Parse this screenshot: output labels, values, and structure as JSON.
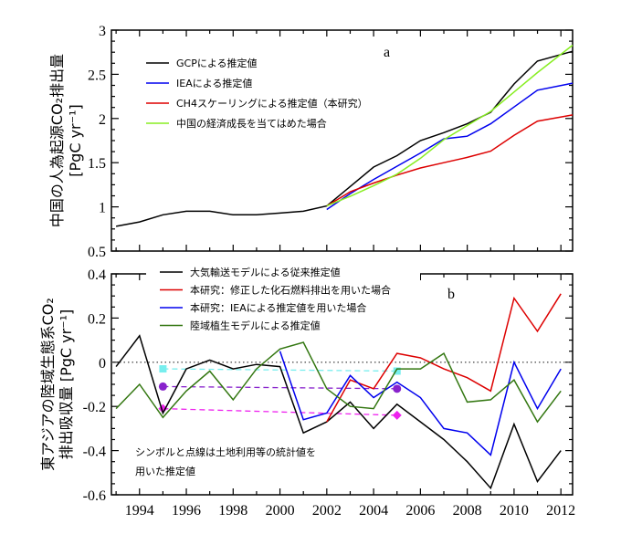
{
  "chart_data": [
    {
      "type": "line",
      "panel_label": "a",
      "ylabel_line1": "中国の人為起源CO₂排出量",
      "ylabel_line2": "[PgC yr⁻¹]",
      "xlabel": "",
      "xlim": [
        1992.8,
        2012.5
      ],
      "ylim": [
        0.5,
        3
      ],
      "yticks": [
        0.5,
        1,
        1.5,
        2,
        2.5,
        3
      ],
      "ytick_labels": [
        "0.5",
        "1",
        "1.5",
        "2",
        "2.5",
        "3"
      ],
      "xticks": [
        1994,
        1996,
        1998,
        2000,
        2002,
        2004,
        2006,
        2008,
        2010,
        2012
      ],
      "legend_position": "top-left",
      "series": [
        {
          "name": "GCPによる推定値",
          "color": "#000000",
          "x": [
            1993,
            1994,
            1995,
            1996,
            1997,
            1998,
            1999,
            2000,
            2001,
            2002,
            2003,
            2004,
            2005,
            2006,
            2007,
            2008,
            2009,
            2010,
            2011,
            2012.5
          ],
          "values": [
            0.78,
            0.83,
            0.91,
            0.95,
            0.95,
            0.91,
            0.91,
            0.93,
            0.95,
            1.01,
            1.23,
            1.45,
            1.58,
            1.75,
            1.84,
            1.94,
            2.07,
            2.39,
            2.65,
            2.76
          ]
        },
        {
          "name": "IEAによる推定値",
          "color": "#0000ee",
          "x": [
            2002,
            2003,
            2004,
            2005,
            2006,
            2007,
            2008,
            2009,
            2010,
            2011,
            2012.5
          ],
          "values": [
            0.97,
            1.15,
            1.31,
            1.46,
            1.61,
            1.77,
            1.8,
            1.94,
            2.13,
            2.32,
            2.4
          ]
        },
        {
          "name": "CH4スケーリングによる推定値（本研究）",
          "color": "#dd0000",
          "x": [
            2002,
            2003,
            2004,
            2005,
            2006,
            2007,
            2008,
            2009,
            2010,
            2011,
            2012.5
          ],
          "values": [
            1.01,
            1.17,
            1.27,
            1.36,
            1.44,
            1.5,
            1.56,
            1.63,
            1.81,
            1.97,
            2.04
          ]
        },
        {
          "name": "中国の経済成長を当てはめた場合",
          "color": "#88ee22",
          "x": [
            2002,
            2003,
            2004,
            2005,
            2006,
            2007,
            2008,
            2009,
            2010,
            2011,
            2012.5
          ],
          "values": [
            1.01,
            1.12,
            1.24,
            1.37,
            1.55,
            1.76,
            1.92,
            2.08,
            2.3,
            2.52,
            2.83
          ]
        }
      ]
    },
    {
      "type": "line",
      "panel_label": "b",
      "ylabel_line1": "東アジアの陸域生態系CO₂",
      "ylabel_line2": "排出吸収量 [PgC yr⁻¹]",
      "xlabel": "",
      "xlim": [
        1992.8,
        2012.5
      ],
      "ylim": [
        -0.6,
        0.4
      ],
      "yticks": [
        -0.6,
        -0.4,
        -0.2,
        0,
        0.2,
        0.4
      ],
      "ytick_labels": [
        "-0.6",
        "-0.4",
        "-0.2",
        "0",
        "0.2",
        "0.4"
      ],
      "xticks": [
        1994,
        1996,
        1998,
        2000,
        2002,
        2004,
        2006,
        2008,
        2010,
        2012
      ],
      "xtick_labels": [
        "1994",
        "1996",
        "1998",
        "2000",
        "2002",
        "2004",
        "2006",
        "2008",
        "2010",
        "2012"
      ],
      "legend_position": "top-left",
      "zero_line": true,
      "annotation_line1": "シンボルと点線は土地利用等の統計値を",
      "annotation_line2": "用いた推定値",
      "series": [
        {
          "name": "大気輸送モデルによる従来推定値",
          "color": "#000000",
          "x": [
            1993,
            1994,
            1995,
            1996,
            1997,
            1998,
            1999,
            2000,
            2001,
            2002,
            2003,
            2004,
            2005,
            2006,
            2007,
            2008,
            2009,
            2010,
            2011,
            2012
          ],
          "values": [
            -0.02,
            0.12,
            -0.23,
            -0.03,
            0.01,
            -0.03,
            -0.01,
            -0.02,
            -0.32,
            -0.27,
            -0.18,
            -0.3,
            -0.19,
            -0.27,
            -0.35,
            -0.45,
            -0.57,
            -0.28,
            -0.54,
            -0.4
          ]
        },
        {
          "name": "本研究：修正した化石燃料排出を用いた場合",
          "color": "#dd0000",
          "x": [
            2002,
            2003,
            2004,
            2005,
            2006,
            2007,
            2008,
            2009,
            2010,
            2011,
            2012
          ],
          "values": [
            -0.27,
            -0.08,
            -0.12,
            0.04,
            0.02,
            -0.03,
            -0.07,
            -0.13,
            0.29,
            0.14,
            0.31
          ]
        },
        {
          "name": "本研究：IEAによる推定値を用いた場合",
          "color": "#0000ee",
          "x": [
            2000,
            2001,
            2002,
            2003,
            2004,
            2005,
            2006,
            2007,
            2008,
            2009,
            2010,
            2011,
            2012
          ],
          "values": [
            0.05,
            -0.26,
            -0.23,
            -0.06,
            -0.16,
            -0.09,
            -0.16,
            -0.3,
            -0.32,
            -0.42,
            0.0,
            -0.21,
            -0.03
          ]
        },
        {
          "name": "陸域植生モデルによる推定値",
          "color": "#337711",
          "x": [
            1993,
            1994,
            1995,
            1996,
            1997,
            1998,
            1999,
            2000,
            2001,
            2002,
            2003,
            2004,
            2005,
            2006,
            2007,
            2008,
            2009,
            2010,
            2011,
            2012
          ],
          "values": [
            -0.21,
            -0.1,
            -0.25,
            -0.13,
            -0.04,
            -0.17,
            -0.03,
            0.06,
            0.09,
            -0.12,
            -0.2,
            -0.21,
            -0.03,
            -0.03,
            0.04,
            -0.18,
            -0.17,
            -0.08,
            -0.27,
            -0.13
          ]
        }
      ],
      "symbols": [
        {
          "name": "cyan-square",
          "shape": "square",
          "color": "#77eeee",
          "x": [
            1995,
            2005
          ],
          "values": [
            -0.03,
            -0.04
          ]
        },
        {
          "name": "purple-circle",
          "shape": "circle",
          "color": "#8822cc",
          "x": [
            1995,
            2005
          ],
          "values": [
            -0.11,
            -0.12
          ]
        },
        {
          "name": "magenta-diamond",
          "shape": "diamond",
          "color": "#ee22ee",
          "x": [
            1995,
            2005
          ],
          "values": [
            -0.21,
            -0.24
          ]
        }
      ]
    }
  ]
}
